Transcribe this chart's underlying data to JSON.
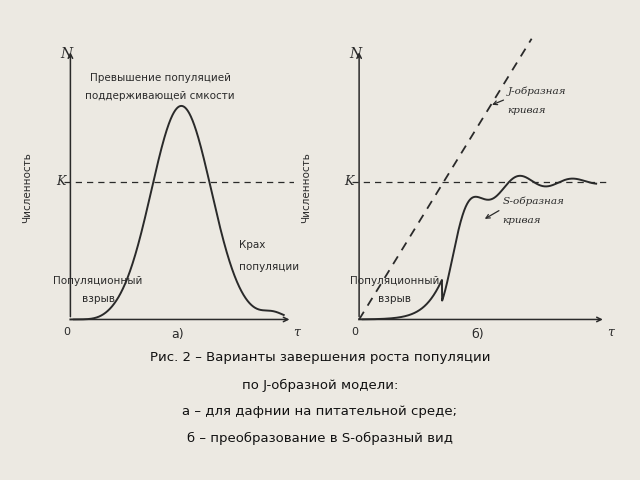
{
  "background_color": "#ece9e2",
  "fig_width": 6.4,
  "fig_height": 4.8,
  "caption_line1": "Рис. 2 – Варианты завершения роста популяции",
  "caption_line2": "по J-образной модели:",
  "caption_line3": "а – для дафнии на питательной среде;",
  "caption_line4": "б – преобразование в S-образный вид",
  "label_a": "а)",
  "label_b": "б)",
  "K_label": "K",
  "N_label": "N",
  "tau_label": "τ",
  "ylabel": "Численность",
  "text_a_top1": "Превышение популяцией",
  "text_a_top2": "поддерживающей смкости",
  "text_a_bottom1": "Популяционный",
  "text_a_bottom2": "взрыв",
  "text_a_crash1": "Крах",
  "text_a_crash2": "популяции",
  "text_b_bottom1": "Популяционный",
  "text_b_bottom2": "взрыв",
  "text_b_j": "J-образная",
  "text_b_j2": "кривая",
  "text_b_s": "S-образная",
  "text_b_s2": "кривая",
  "line_color": "#2a2a2a",
  "dashed_color": "#2a2a2a"
}
